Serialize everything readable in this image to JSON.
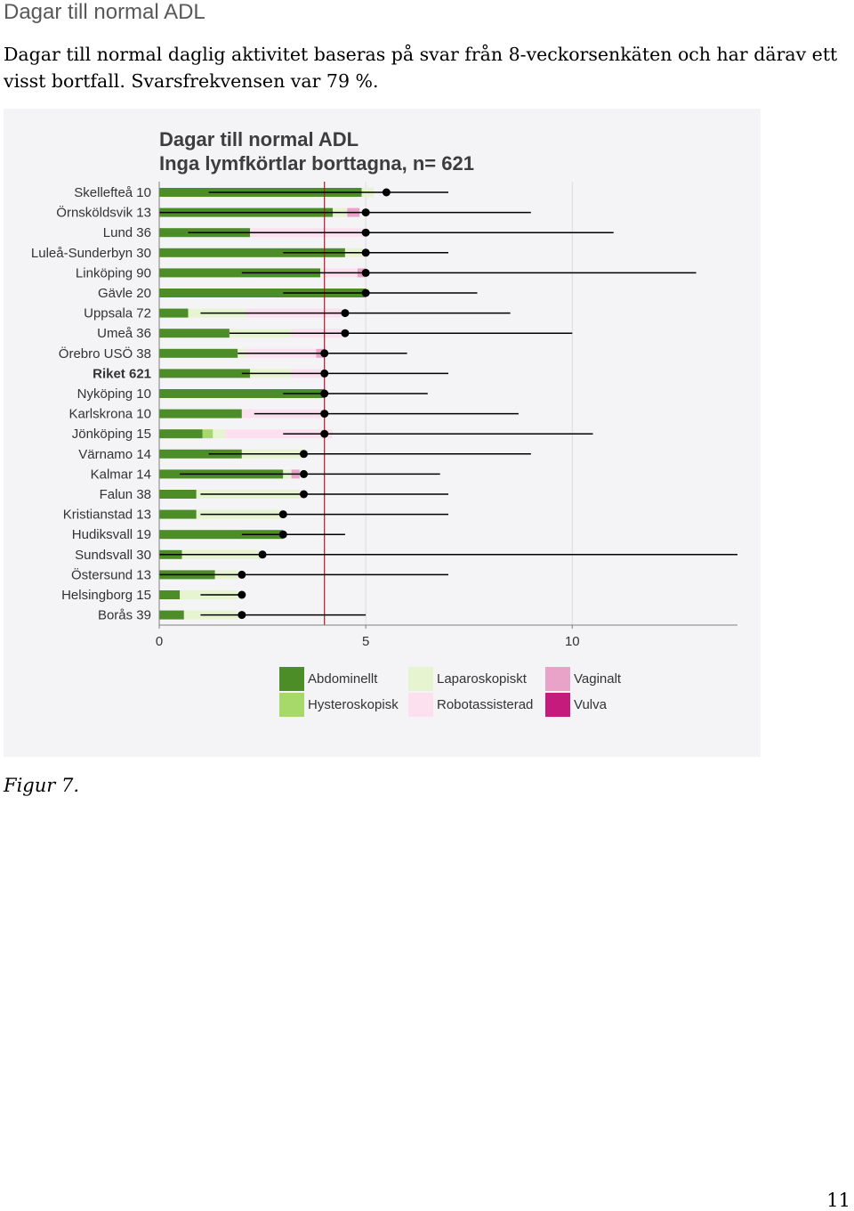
{
  "document": {
    "heading": "Dagar till normal ADL",
    "intro": "Dagar till normal daglig aktivitet baseras på svar från 8-veckorsenkäten och har därav ett visst bortfall. Svarsfrekvensen var 79 %.",
    "caption": "Figur 7.",
    "page_number": "11"
  },
  "chart_data": {
    "type": "bar",
    "orientation": "horizontal",
    "stacked": true,
    "title": "Dagar till normal ADL",
    "subtitle": "Inga lymfkörtlar borttagna, n= 621",
    "categories": [
      "Skellefteå 10",
      "Örnsköldsvik 13",
      "Lund 36",
      "Luleå-Sunderbyn 30",
      "Linköping 90",
      "Gävle 20",
      "Uppsala 72",
      "Umeå 36",
      "Örebro USÖ 38",
      "Riket 621",
      "Nyköping 10",
      "Karlskrona 10",
      "Jönköping 15",
      "Värnamo 14",
      "Kalmar 14",
      "Falun 38",
      "Kristianstad 13",
      "Hudiksvall 19",
      "Sundsvall 30",
      "Östersund 13",
      "Helsingborg 15",
      "Borås 39"
    ],
    "bold_category": "Riket 621",
    "series": [
      {
        "name": "Abdominellt",
        "color": "#4d8d27",
        "values": [
          4.9,
          4.2,
          2.2,
          4.5,
          3.9,
          5.0,
          0.7,
          1.7,
          1.9,
          2.2,
          4.0,
          2.0,
          1.05,
          2.0,
          3.0,
          0.9,
          0.9,
          3.0,
          0.55,
          1.35,
          0.5,
          0.6
        ]
      },
      {
        "name": "Hysteroskopisk",
        "color": "#a6d96a",
        "values": [
          0,
          0,
          0,
          0,
          0,
          0,
          0,
          0,
          0,
          0,
          0,
          0,
          0.25,
          0,
          0,
          0,
          0,
          0,
          0,
          0,
          0,
          0
        ]
      },
      {
        "name": "Laparoskopiskt",
        "color": "#e6f5d0",
        "values": [
          0.3,
          0.35,
          0,
          0.45,
          0.05,
          0,
          1.4,
          1.5,
          0.2,
          1.0,
          0,
          0,
          0.3,
          1.5,
          0.2,
          2.5,
          2.1,
          0,
          1.9,
          0.55,
          1.4,
          1.3
        ]
      },
      {
        "name": "Robotassisterad",
        "color": "#fde0ef",
        "values": [
          0,
          0,
          2.8,
          0,
          0.85,
          0,
          2.3,
          1.25,
          1.7,
          0.8,
          0,
          2.0,
          2.6,
          0,
          0,
          0.1,
          0,
          0,
          0,
          0,
          0,
          0
        ]
      },
      {
        "name": "Vaginalt",
        "color": "#e9a3c9",
        "values": [
          0,
          0.3,
          0,
          0,
          0.2,
          0,
          0,
          0,
          0.2,
          0,
          0,
          0,
          0,
          0,
          0.2,
          0,
          0,
          0,
          0,
          0,
          0,
          0
        ]
      },
      {
        "name": "Vulva",
        "color": "#c51b7d",
        "values": [
          0,
          0,
          0,
          0,
          0,
          0,
          0,
          0,
          0,
          0,
          0,
          0,
          0,
          0,
          0,
          0,
          0,
          0,
          0,
          0,
          0,
          0
        ]
      }
    ],
    "median": [
      5.5,
      5,
      5,
      5,
      5,
      5,
      4.5,
      4.5,
      4,
      4,
      4,
      4,
      4,
      3.5,
      3.5,
      3.5,
      3,
      3,
      2.5,
      2,
      2,
      2
    ],
    "range_low": [
      1.2,
      0,
      0.7,
      3,
      2,
      3,
      1,
      1.7,
      1.9,
      2,
      3,
      2.3,
      3,
      1.2,
      0.5,
      1,
      1,
      2,
      0,
      0,
      1,
      1
    ],
    "range_high": [
      7,
      9,
      11,
      7,
      13,
      7.7,
      8.5,
      10,
      6,
      7,
      6.5,
      8.7,
      10.5,
      9,
      6.8,
      7,
      7,
      4.5,
      14,
      7,
      2,
      5
    ],
    "reference_line": 4,
    "xlim": [
      0,
      14
    ],
    "x_ticks": [
      0,
      5,
      10
    ],
    "x_tick_labels": [
      "0",
      "5",
      "10"
    ],
    "grid": true,
    "legend_position": "bottom"
  }
}
